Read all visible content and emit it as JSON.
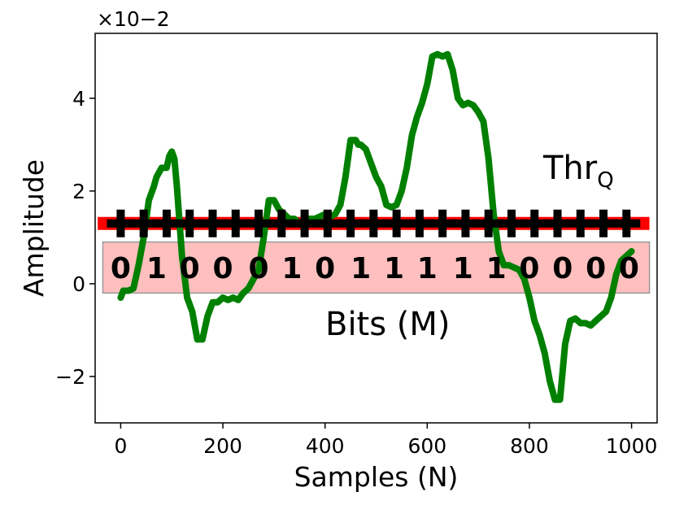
{
  "chart_data": {
    "type": "line",
    "xlabel": "Samples (N)",
    "ylabel": "Amplitude",
    "xlim": [
      -50,
      1050
    ],
    "ylim": [
      -3.0,
      5.4
    ],
    "y_multiplier": "×10−2",
    "x_ticks": [
      0,
      200,
      400,
      600,
      800,
      1000
    ],
    "y_ticks": [
      -2,
      0,
      2,
      4
    ],
    "y_tick_labels": [
      "−2",
      "0",
      "2",
      "4"
    ],
    "grid": false,
    "series": [
      {
        "color": "#008000",
        "x": [
          0,
          5,
          15,
          25,
          35,
          45,
          55,
          65,
          70,
          80,
          90,
          95,
          100,
          105,
          110,
          120,
          130,
          140,
          150,
          160,
          170,
          180,
          190,
          200,
          210,
          220,
          230,
          240,
          250,
          260,
          270,
          280,
          290,
          300,
          310,
          320,
          330,
          340,
          350,
          360,
          370,
          380,
          390,
          400,
          410,
          420,
          430,
          440,
          450,
          460,
          465,
          470,
          480,
          490,
          500,
          510,
          520,
          530,
          540,
          550,
          560,
          570,
          580,
          590,
          600,
          610,
          620,
          630,
          640,
          650,
          660,
          670,
          680,
          690,
          700,
          710,
          720,
          730,
          740,
          750,
          760,
          770,
          780,
          790,
          800,
          810,
          820,
          830,
          840,
          850,
          860,
          870,
          880,
          890,
          900,
          910,
          920,
          930,
          940,
          950,
          960,
          970,
          980,
          990,
          1000
        ],
        "y": [
          -0.3,
          -0.15,
          -0.15,
          -0.1,
          0.4,
          1.0,
          1.8,
          2.1,
          2.3,
          2.5,
          2.5,
          2.75,
          2.85,
          2.7,
          2.1,
          0.6,
          -0.3,
          -0.6,
          -1.2,
          -1.2,
          -0.7,
          -0.4,
          -0.4,
          -0.3,
          -0.35,
          -0.3,
          -0.35,
          -0.2,
          -0.1,
          0.1,
          0.3,
          1.0,
          1.8,
          1.8,
          1.6,
          1.5,
          1.4,
          1.4,
          1.3,
          1.35,
          1.4,
          1.4,
          1.45,
          1.5,
          1.45,
          1.5,
          1.7,
          2.3,
          3.1,
          3.1,
          3.0,
          3.0,
          2.9,
          2.6,
          2.3,
          2.1,
          1.7,
          1.65,
          1.7,
          2.0,
          2.5,
          3.2,
          3.6,
          3.9,
          4.3,
          4.9,
          4.95,
          4.9,
          4.95,
          4.6,
          4.0,
          3.85,
          3.9,
          3.85,
          3.7,
          3.5,
          2.7,
          1.5,
          0.7,
          0.4,
          0.4,
          0.35,
          0.3,
          0.1,
          -0.3,
          -0.8,
          -1.1,
          -1.5,
          -2.1,
          -2.5,
          -2.5,
          -1.3,
          -0.8,
          -0.75,
          -0.85,
          -0.85,
          -0.9,
          -0.8,
          -0.7,
          -0.6,
          -0.3,
          0.2,
          0.5,
          0.6,
          0.7
        ]
      }
    ],
    "threshold": {
      "label_main": "Thr",
      "label_sub": "Q",
      "y": 1.3,
      "x_range": [
        -45,
        1035
      ],
      "color": "#ff0000",
      "markers_x": [
        0,
        45,
        90,
        135,
        180,
        225,
        270,
        315,
        360,
        405,
        450,
        495,
        540,
        585,
        630,
        675,
        720,
        765,
        810,
        855,
        900,
        945,
        990
      ]
    },
    "bits_box": {
      "label": "Bits (M)",
      "x_range": [
        -35,
        1035
      ],
      "y_range": [
        -0.2,
        0.9
      ],
      "color": "#ffbfbf"
    },
    "bits": [
      {
        "x": 0,
        "v": "0"
      },
      {
        "x": 70,
        "v": "1"
      },
      {
        "x": 135,
        "v": "0"
      },
      {
        "x": 200,
        "v": "0"
      },
      {
        "x": 270,
        "v": "0"
      },
      {
        "x": 335,
        "v": "1"
      },
      {
        "x": 400,
        "v": "0"
      },
      {
        "x": 470,
        "v": "1"
      },
      {
        "x": 535,
        "v": "1"
      },
      {
        "x": 600,
        "v": "1"
      },
      {
        "x": 670,
        "v": "1"
      },
      {
        "x": 735,
        "v": "1"
      },
      {
        "x": 800,
        "v": "0"
      },
      {
        "x": 865,
        "v": "0"
      },
      {
        "x": 930,
        "v": "0"
      },
      {
        "x": 995,
        "v": "0"
      }
    ]
  }
}
